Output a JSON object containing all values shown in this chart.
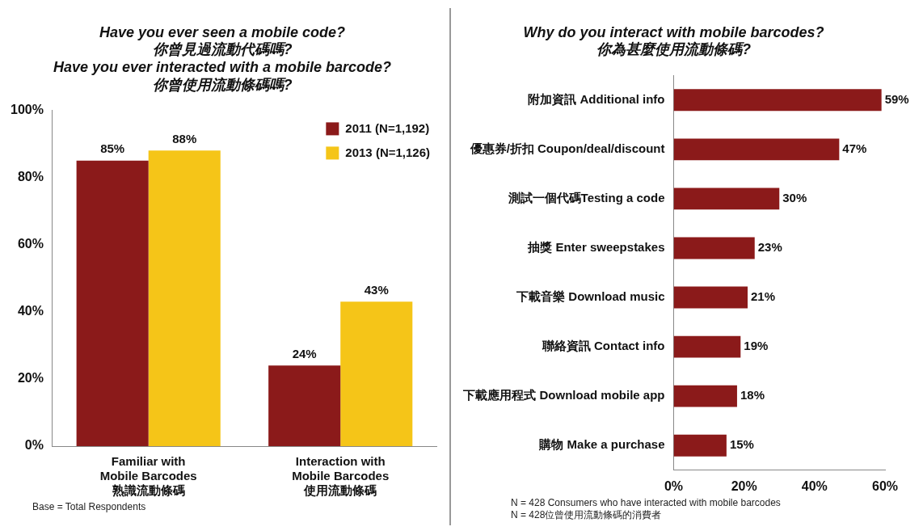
{
  "chart_data": [
    {
      "type": "bar",
      "title": "Have you ever seen a mobile code?\n你曾見過流動代碼嗎?\nHave you ever interacted with a mobile barcode?\n你曾使用流動條碼嗎?",
      "categories": [
        "Familiar with\nMobile Barcodes\n熟識流動條碼",
        "Interaction with\nMobile Barcodes\n使用流動條碼"
      ],
      "series": [
        {
          "name": "2011 (N=1,192)",
          "color": "#8b1a1a",
          "values": [
            85,
            24
          ],
          "value_labels": [
            "85%",
            "24%"
          ]
        },
        {
          "name": "2013 (N=1,126)",
          "color": "#f5c518",
          "values": [
            88,
            43
          ],
          "value_labels": [
            "88%",
            "43%"
          ]
        }
      ],
      "ylim": [
        0,
        100
      ],
      "yticks": [
        {
          "value": 0,
          "label": "0%"
        },
        {
          "value": 20,
          "label": "20%"
        },
        {
          "value": 40,
          "label": "40%"
        },
        {
          "value": 60,
          "label": "60%"
        },
        {
          "value": 80,
          "label": "80%"
        },
        {
          "value": 100,
          "label": "100%"
        }
      ],
      "grid": false,
      "legend": "top right",
      "annotations": [
        "Base = Total Respondents"
      ]
    },
    {
      "type": "bar",
      "orientation": "horizontal",
      "title": "Why do you interact with mobile barcodes?\n你為甚麼使用流動條碼?",
      "categories": [
        "附加資訊 Additional info",
        "優惠券/折扣 Coupon/deal/discount",
        "測試一個代碼Testing a code",
        "抽獎 Enter sweepstakes",
        "下載音樂 Download music",
        "聯絡資訊 Contact info",
        "下載應用程式 Download mobile app",
        "購物 Make a purchase"
      ],
      "values": [
        59,
        47,
        30,
        23,
        21,
        19,
        18,
        15
      ],
      "color": "#8b1a1a",
      "value_labels": [
        "59%",
        "47%",
        "30%",
        "23%",
        "21%",
        "19%",
        "18%",
        "15%"
      ],
      "xlim": [
        0,
        60
      ],
      "xticks": [
        {
          "value": 0,
          "label": "0%"
        },
        {
          "value": 20,
          "label": "20%"
        },
        {
          "value": 40,
          "label": "40%"
        },
        {
          "value": 60,
          "label": "60%"
        }
      ],
      "grid": false,
      "legend": false,
      "annotations": [
        "N = 428 Consumers who have interacted with mobile barcodes",
        "N = 428位曾使用流動條碼的消費者"
      ]
    }
  ]
}
